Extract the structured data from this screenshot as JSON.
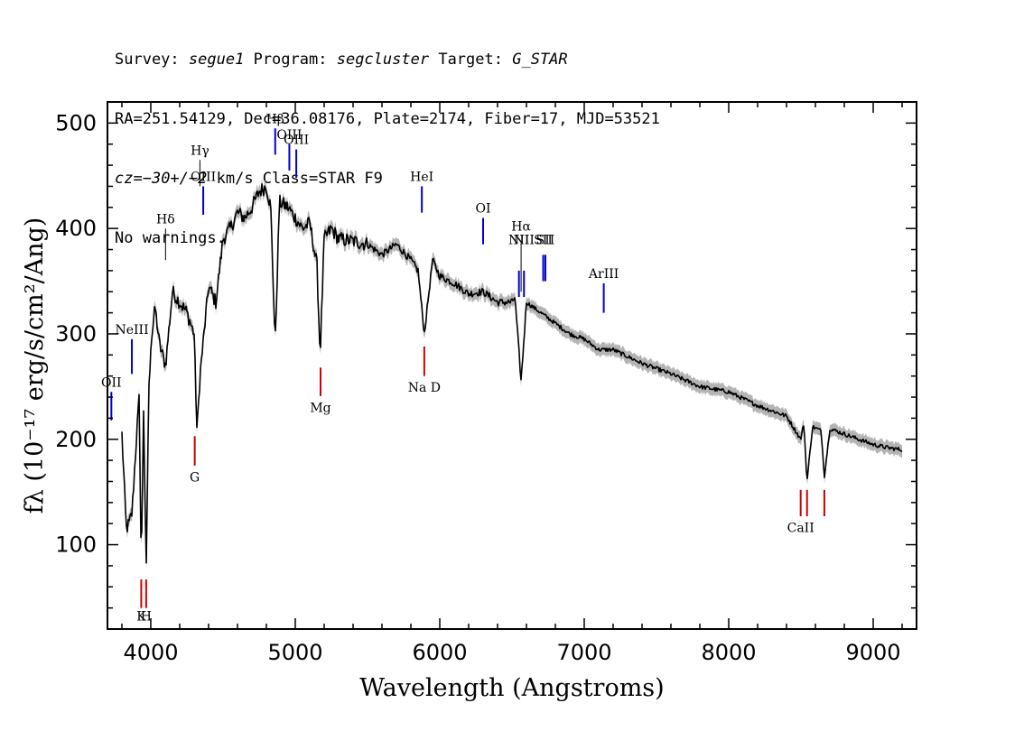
{
  "header": {
    "survey_label": "Survey:",
    "survey": "segue1",
    "program_label": "Program:",
    "program": "segcluster",
    "target_label": "Target:",
    "target": "G_STAR",
    "line2": "RA=251.54129, Dec=36.08176, Plate=2174, Fiber=17, MJD=53521",
    "cz_prefix": "cz=",
    "cz_value": "−30+/−2",
    "cz_suffix": " km/s Class=STAR F9",
    "line4": "No warnings."
  },
  "chart_data": {
    "type": "line",
    "xlabel": "Wavelength (Angstroms)",
    "ylabel": "fλ (10⁻¹⁷ erg/s/cm²/Ang)",
    "xlim": [
      3700,
      9300
    ],
    "ylim": [
      20,
      520
    ],
    "xticks": [
      4000,
      5000,
      6000,
      7000,
      8000,
      9000
    ],
    "yticks": [
      100,
      200,
      300,
      400,
      500
    ],
    "colors": {
      "spectrum": "#000000",
      "error_band": "#b4b4b4",
      "emission": "#0000cc",
      "absorption": "#cc0000",
      "marker": "#000000"
    },
    "spectrum": {
      "x": [
        3800,
        3830,
        3850,
        3870,
        3900,
        3920,
        3934,
        3950,
        3968,
        3985,
        4000,
        4030,
        4060,
        4102,
        4150,
        4200,
        4250,
        4300,
        4320,
        4340,
        4400,
        4450,
        4500,
        4550,
        4600,
        4650,
        4700,
        4750,
        4800,
        4830,
        4861,
        4890,
        4950,
        5000,
        5050,
        5100,
        5150,
        5172,
        5200,
        5250,
        5300,
        5400,
        5500,
        5600,
        5700,
        5800,
        5850,
        5893,
        5950,
        6000,
        6100,
        6200,
        6300,
        6400,
        6500,
        6520,
        6563,
        6600,
        6700,
        6800,
        6900,
        7000,
        7100,
        7200,
        7400,
        7600,
        7800,
        8000,
        8200,
        8400,
        8498,
        8520,
        8542,
        8580,
        8640,
        8662,
        8700,
        8800,
        8900,
        9000,
        9100,
        9200
      ],
      "y": [
        205,
        115,
        120,
        130,
        200,
        240,
        75,
        230,
        70,
        240,
        290,
        325,
        290,
        270,
        340,
        330,
        320,
        300,
        205,
        260,
        345,
        330,
        390,
        400,
        415,
        410,
        420,
        435,
        440,
        420,
        290,
        425,
        420,
        410,
        400,
        405,
        365,
        280,
        390,
        400,
        390,
        388,
        385,
        375,
        385,
        370,
        360,
        300,
        370,
        355,
        348,
        338,
        340,
        330,
        330,
        335,
        255,
        330,
        320,
        310,
        300,
        295,
        285,
        285,
        272,
        262,
        250,
        245,
        232,
        222,
        200,
        215,
        160,
        212,
        208,
        165,
        210,
        205,
        200,
        195,
        192,
        190
      ]
    },
    "lines": [
      {
        "label": "OII",
        "x": 3727,
        "type": "emission",
        "y0": 245,
        "y1": 218,
        "label_y": 250
      },
      {
        "label": "NeIII",
        "x": 3869,
        "type": "emission",
        "y0": 295,
        "y1": 262,
        "label_y": 300
      },
      {
        "label": "Hδ",
        "x": 4102,
        "type": "marker",
        "y0": 400,
        "y1": 370,
        "label_y": 405
      },
      {
        "label": "Hγ",
        "x": 4340,
        "type": "marker",
        "y0": 465,
        "y1": 440,
        "label_y": 470
      },
      {
        "label": "OIII",
        "x": 4363,
        "type": "emission",
        "y0": 440,
        "y1": 413,
        "label_y": 445
      },
      {
        "label": "Hβ",
        "x": 4861,
        "type": "emission",
        "y0": 495,
        "y1": 470,
        "label_y": 500
      },
      {
        "label": "OIII",
        "x": 4959,
        "type": "emission",
        "y0": 480,
        "y1": 455,
        "label_y": 485
      },
      {
        "label": "OIII",
        "x": 5007,
        "type": "emission",
        "y0": 475,
        "y1": 448,
        "label_y": 480
      },
      {
        "label": "HeI",
        "x": 5876,
        "type": "emission",
        "y0": 440,
        "y1": 415,
        "label_y": 445
      },
      {
        "label": "OI",
        "x": 6300,
        "type": "emission",
        "y0": 410,
        "y1": 385,
        "label_y": 415
      },
      {
        "label": "NII",
        "x": 6548,
        "type": "emission",
        "y0": 360,
        "y1": 335,
        "label_y": 385
      },
      {
        "label": "Hα",
        "x": 6563,
        "type": "marker",
        "y0": 385,
        "y1": 340,
        "label_y": 398
      },
      {
        "label": "NII",
        "x": 6583,
        "type": "emission",
        "y0": 360,
        "y1": 335,
        "label_y": 385
      },
      {
        "label": "SII",
        "x": 6716,
        "type": "emission",
        "y0": 375,
        "y1": 350,
        "label_y": 385
      },
      {
        "label": "SII",
        "x": 6731,
        "type": "emission",
        "y0": 375,
        "y1": 350,
        "label_y": 385
      },
      {
        "label": "ArIII",
        "x": 7135,
        "type": "emission",
        "y0": 348,
        "y1": 320,
        "label_y": 353
      },
      {
        "label": "K",
        "x": 3934,
        "type": "absorption",
        "y0": 40,
        "y1": 67,
        "label_y": 28
      },
      {
        "label": "H",
        "x": 3968,
        "type": "absorption",
        "y0": 40,
        "y1": 67,
        "label_y": 28
      },
      {
        "label": "G",
        "x": 4304,
        "type": "absorption",
        "y0": 175,
        "y1": 203,
        "label_y": 160
      },
      {
        "label": "Mg",
        "x": 5175,
        "type": "absorption",
        "y0": 241,
        "y1": 268,
        "label_y": 226
      },
      {
        "label": "Na D",
        "x": 5893,
        "type": "absorption",
        "y0": 260,
        "y1": 288,
        "label_y": 245
      },
      {
        "label": "CaII",
        "x": 8498,
        "type": "absorption",
        "y0": 127,
        "y1": 152,
        "label_y": 112
      },
      {
        "label": "CaII",
        "x": 8542,
        "type": "absorption",
        "y0": 127,
        "y1": 152,
        "label_y": null
      },
      {
        "label": "CaII",
        "x": 8662,
        "type": "absorption",
        "y0": 127,
        "y1": 152,
        "label_y": null
      }
    ]
  }
}
